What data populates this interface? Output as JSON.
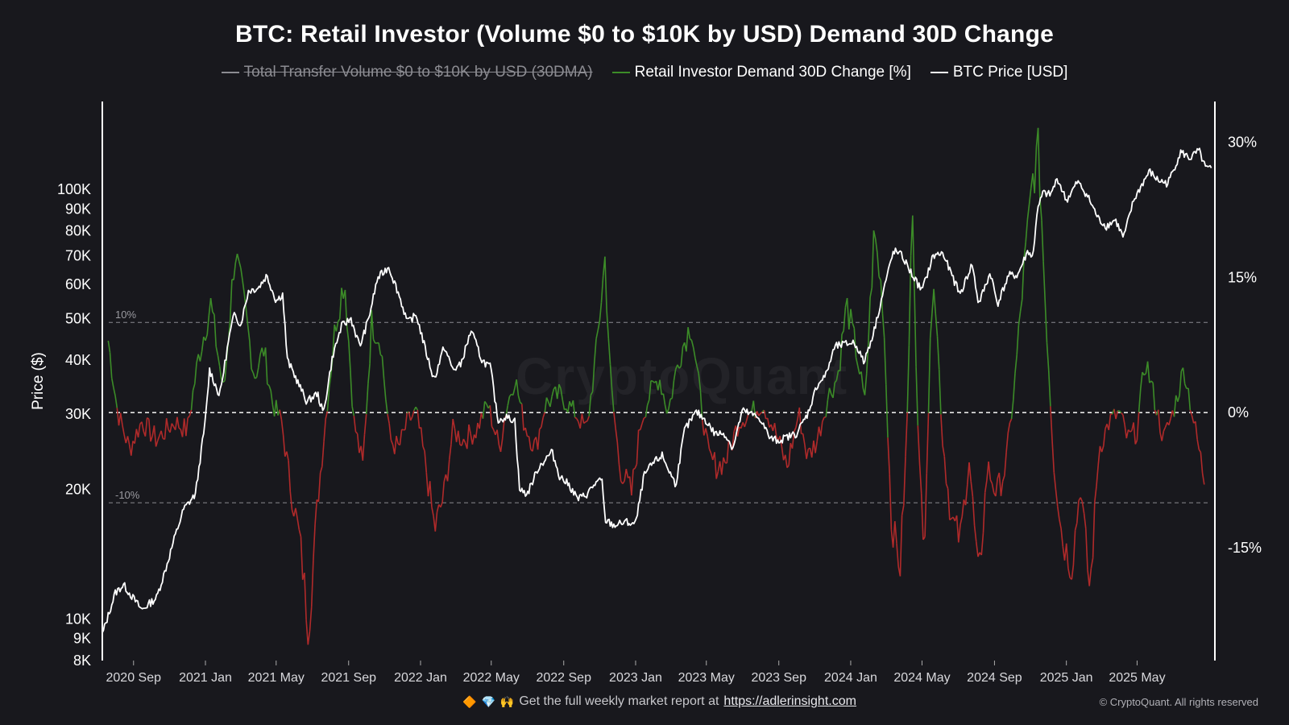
{
  "chart_data": {
    "type": "line",
    "title": "BTC: Retail Investor (Volume $0 to $10K by USD) Demand 30D Change",
    "ylabel": "Price ($)",
    "ylim": [
      8000,
      160000
    ],
    "y_scale": "log",
    "y2lim": [
      -27.5,
      34.5
    ],
    "xlim": [
      "2020-07-10",
      "2025-09-10"
    ],
    "grid": false,
    "legend_position": "top-center",
    "x_tick_labels": [
      "2020 Sep",
      "2021 Jan",
      "2021 May",
      "2021 Sep",
      "2022 Jan",
      "2022 May",
      "2022 Sep",
      "2023 Jan",
      "2023 May",
      "2023 Sep",
      "2024 Jan",
      "2024 May",
      "2024 Sep",
      "2025 Jan",
      "2025 May"
    ],
    "x_tick_dates": [
      "2020-09-01",
      "2021-01-01",
      "2021-05-01",
      "2021-09-01",
      "2022-01-01",
      "2022-05-01",
      "2022-09-01",
      "2023-01-01",
      "2023-05-01",
      "2023-09-01",
      "2024-01-01",
      "2024-05-01",
      "2024-09-01",
      "2025-01-01",
      "2025-05-01"
    ],
    "y_left_ticks": [
      {
        "label": "8K",
        "value": 8000
      },
      {
        "label": "9K",
        "value": 9000
      },
      {
        "label": "10K",
        "value": 10000
      },
      {
        "label": "20K",
        "value": 20000
      },
      {
        "label": "30K",
        "value": 30000
      },
      {
        "label": "40K",
        "value": 40000
      },
      {
        "label": "50K",
        "value": 50000
      },
      {
        "label": "60K",
        "value": 60000
      },
      {
        "label": "70K",
        "value": 70000
      },
      {
        "label": "80K",
        "value": 80000
      },
      {
        "label": "90K",
        "value": 90000
      },
      {
        "label": "100K",
        "value": 100000
      }
    ],
    "y_right_ticks": [
      {
        "label": "30%",
        "value": 30
      },
      {
        "label": "15%",
        "value": 15
      },
      {
        "label": "0%",
        "value": 0
      },
      {
        "label": "-15%",
        "value": -15
      }
    ],
    "reference_lines": [
      {
        "label": "10%",
        "value": 10
      },
      {
        "label": "",
        "value": 0
      },
      {
        "label": "-10%",
        "value": -10
      }
    ],
    "series": [
      {
        "name": "Total Transfer Volume $0 to $10K by USD (30DMA)",
        "color": "#8c8c92",
        "hidden": true,
        "x": [],
        "values": []
      },
      {
        "name": "Retail Investor Demand 30D Change [%]",
        "axis": "right",
        "color_positive": "#3c8c28",
        "color_negative": "#b02a2a",
        "x": [
          "2020-07-20",
          "2020-08-05",
          "2020-08-25",
          "2020-09-15",
          "2020-10-10",
          "2020-11-10",
          "2020-12-01",
          "2020-12-20",
          "2021-01-10",
          "2021-02-01",
          "2021-02-20",
          "2021-03-10",
          "2021-03-25",
          "2021-04-10",
          "2021-04-25",
          "2021-05-10",
          "2021-05-25",
          "2021-06-10",
          "2021-06-25",
          "2021-07-10",
          "2021-07-25",
          "2021-08-10",
          "2021-08-25",
          "2021-09-10",
          "2021-09-25",
          "2021-10-10",
          "2021-10-25",
          "2021-11-10",
          "2021-11-25",
          "2021-12-10",
          "2021-12-25",
          "2022-01-10",
          "2022-01-25",
          "2022-02-10",
          "2022-02-25",
          "2022-03-15",
          "2022-04-05",
          "2022-04-25",
          "2022-05-15",
          "2022-05-25",
          "2022-06-10",
          "2022-06-25",
          "2022-07-15",
          "2022-08-01",
          "2022-08-25",
          "2022-09-20",
          "2022-10-10",
          "2022-10-25",
          "2022-11-10",
          "2022-11-20",
          "2022-12-05",
          "2022-12-25",
          "2023-01-10",
          "2023-01-25",
          "2023-02-10",
          "2023-02-25",
          "2023-03-15",
          "2023-04-05",
          "2023-04-20",
          "2023-05-05",
          "2023-05-20",
          "2023-06-05",
          "2023-06-25",
          "2023-07-15",
          "2023-08-05",
          "2023-08-25",
          "2023-09-15",
          "2023-10-05",
          "2023-10-20",
          "2023-11-05",
          "2023-11-25",
          "2023-12-10",
          "2023-12-25",
          "2024-01-10",
          "2024-01-25",
          "2024-02-10",
          "2024-02-25",
          "2024-03-10",
          "2024-03-25",
          "2024-04-05",
          "2024-04-15",
          "2024-04-25",
          "2024-05-05",
          "2024-05-20",
          "2024-06-05",
          "2024-06-20",
          "2024-07-05",
          "2024-07-20",
          "2024-08-05",
          "2024-08-20",
          "2024-09-05",
          "2024-09-20",
          "2024-10-05",
          "2024-10-20",
          "2024-11-05",
          "2024-11-15",
          "2024-11-25",
          "2024-12-10",
          "2024-12-25",
          "2025-01-10",
          "2025-01-25",
          "2025-02-10",
          "2025-02-25",
          "2025-03-15",
          "2025-04-01",
          "2025-04-15",
          "2025-05-01",
          "2025-05-15",
          "2025-06-01",
          "2025-06-15",
          "2025-07-01",
          "2025-07-20",
          "2025-08-05",
          "2025-08-25"
        ],
        "values": [
          8,
          0,
          -4,
          -1,
          -3,
          -1,
          -2,
          6,
          12,
          2,
          18,
          11,
          4,
          7,
          1,
          -1,
          -8,
          -14,
          -24,
          -10,
          0,
          10,
          15,
          -1,
          -6,
          10,
          8,
          -3,
          -4,
          -1,
          0,
          -6,
          -13,
          -9,
          -2,
          -3,
          -2,
          1,
          -4,
          0,
          4,
          -1,
          -4,
          1,
          2,
          0,
          -2,
          6,
          17,
          3,
          -6,
          -9,
          -1,
          2,
          4,
          0,
          6,
          10,
          2,
          -5,
          -6,
          -5,
          -1,
          0,
          1,
          -2,
          -6,
          0,
          -5,
          -3,
          2,
          4,
          12,
          7,
          1,
          20,
          12,
          -12,
          -17,
          -3,
          24,
          -5,
          -14,
          17,
          -3,
          -12,
          -14,
          -5,
          -19,
          -6,
          -9,
          -6,
          3,
          15,
          26,
          29,
          14,
          -5,
          -14,
          -17,
          -8,
          -20,
          -4,
          -1,
          0,
          -3,
          -2,
          6,
          1,
          -3,
          0,
          5,
          -1,
          -8
        ]
      },
      {
        "name": "BTC Price [USD]",
        "axis": "left",
        "color": "#ffffff",
        "x": [
          "2020-07-10",
          "2020-08-01",
          "2020-08-15",
          "2020-09-15",
          "2020-10-10",
          "2020-10-25",
          "2020-11-10",
          "2020-11-25",
          "2020-12-15",
          "2021-01-01",
          "2021-01-08",
          "2021-01-25",
          "2021-02-10",
          "2021-02-20",
          "2021-03-01",
          "2021-03-15",
          "2021-04-01",
          "2021-04-15",
          "2021-05-01",
          "2021-05-12",
          "2021-05-20",
          "2021-06-01",
          "2021-06-22",
          "2021-07-10",
          "2021-07-20",
          "2021-08-05",
          "2021-08-20",
          "2021-09-05",
          "2021-09-20",
          "2021-10-05",
          "2021-10-20",
          "2021-11-08",
          "2021-11-25",
          "2021-12-10",
          "2021-12-25",
          "2022-01-10",
          "2022-01-24",
          "2022-02-10",
          "2022-02-25",
          "2022-03-10",
          "2022-03-28",
          "2022-04-15",
          "2022-04-30",
          "2022-05-12",
          "2022-05-25",
          "2022-06-10",
          "2022-06-18",
          "2022-07-01",
          "2022-07-20",
          "2022-08-12",
          "2022-08-25",
          "2022-09-10",
          "2022-09-25",
          "2022-10-10",
          "2022-10-25",
          "2022-11-05",
          "2022-11-10",
          "2022-11-25",
          "2022-12-15",
          "2023-01-01",
          "2023-01-15",
          "2023-01-30",
          "2023-02-15",
          "2023-03-10",
          "2023-03-25",
          "2023-04-14",
          "2023-04-30",
          "2023-05-15",
          "2023-06-01",
          "2023-06-15",
          "2023-07-01",
          "2023-07-15",
          "2023-08-01",
          "2023-08-17",
          "2023-09-01",
          "2023-09-15",
          "2023-10-01",
          "2023-10-20",
          "2023-11-05",
          "2023-11-20",
          "2023-12-05",
          "2023-12-20",
          "2024-01-05",
          "2024-01-12",
          "2024-01-23",
          "2024-02-10",
          "2024-02-28",
          "2024-03-14",
          "2024-03-28",
          "2024-04-15",
          "2024-05-01",
          "2024-05-20",
          "2024-06-05",
          "2024-06-25",
          "2024-07-05",
          "2024-07-25",
          "2024-08-05",
          "2024-08-25",
          "2024-09-06",
          "2024-09-25",
          "2024-10-10",
          "2024-10-28",
          "2024-11-05",
          "2024-11-12",
          "2024-11-22",
          "2024-12-05",
          "2024-12-17",
          "2025-01-01",
          "2025-01-20",
          "2025-02-05",
          "2025-02-25",
          "2025-03-10",
          "2025-03-25",
          "2025-04-08",
          "2025-04-25",
          "2025-05-10",
          "2025-05-22",
          "2025-06-05",
          "2025-06-22",
          "2025-07-14",
          "2025-07-30",
          "2025-08-14",
          "2025-08-25",
          "2025-09-05"
        ],
        "values": [
          9200,
          11500,
          12000,
          10500,
          11200,
          13000,
          15500,
          18000,
          19500,
          29000,
          38000,
          33000,
          45000,
          52000,
          48000,
          58000,
          59000,
          63000,
          55000,
          57000,
          40000,
          37000,
          32000,
          33500,
          30000,
          41000,
          48000,
          50000,
          43000,
          50000,
          62000,
          66000,
          57000,
          49000,
          51000,
          42000,
          36000,
          43000,
          38000,
          39000,
          47000,
          40000,
          38500,
          29000,
          29500,
          29000,
          20000,
          19500,
          22500,
          24500,
          21500,
          20500,
          19000,
          19500,
          20700,
          21000,
          17000,
          16500,
          16800,
          16600,
          21500,
          23000,
          24000,
          20500,
          27500,
          30300,
          29000,
          27000,
          27000,
          25000,
          30500,
          30000,
          29200,
          26300,
          26000,
          26500,
          27000,
          30000,
          35000,
          37000,
          43000,
          43500,
          44000,
          43000,
          39500,
          47000,
          60000,
          72000,
          70000,
          63000,
          58000,
          70000,
          71000,
          61000,
          57000,
          67000,
          54000,
          64000,
          54000,
          63000,
          63000,
          72000,
          69000,
          88000,
          98000,
          97000,
          106000,
          94000,
          104000,
          97000,
          85000,
          82000,
          85000,
          77000,
          94000,
          103000,
          110000,
          105000,
          103000,
          122000,
          118000,
          123000,
          112000,
          111000
        ]
      }
    ]
  },
  "watermark": "CryptoQuant",
  "footer": {
    "text": "Get the full weekly market report at",
    "link": "https://adlerinsight.com"
  },
  "copyright": "© CryptoQuant. All rights reserved"
}
